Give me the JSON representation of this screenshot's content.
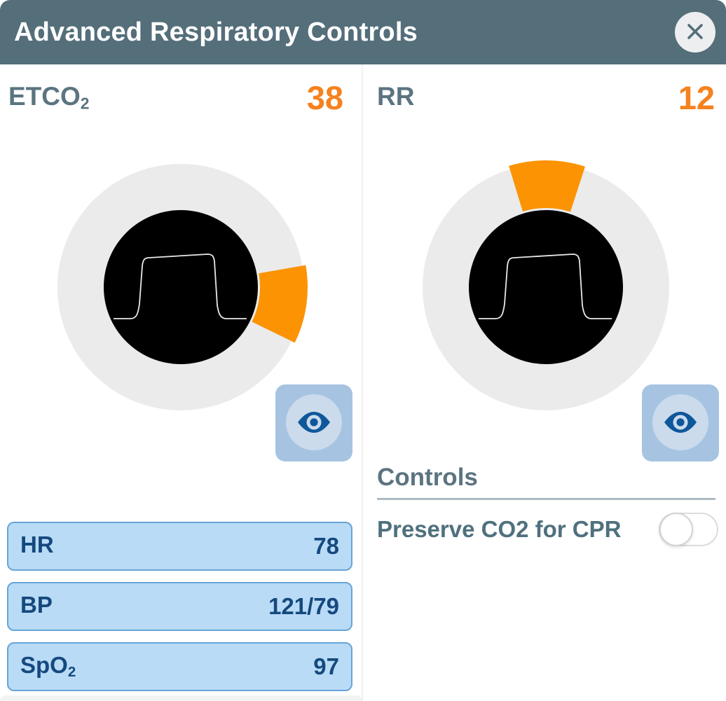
{
  "header": {
    "title": "Advanced Respiratory Controls",
    "close_icon": "x-close"
  },
  "theme": {
    "header_bg": "#546E7A",
    "slate_text": "#5B7480",
    "accent_orange": "#F5821F",
    "wedge_orange": "#FB9303",
    "gauge_ring": "#EBEBEB",
    "gauge_face": "#000000",
    "waveform": "#E9E9E9",
    "eye_button_bg": "#A6C4E2",
    "eye_button_circle": "#CBDBEC",
    "eye_icon": "#0F579B",
    "vital_bg": "#B9DBF6",
    "vital_border": "#67A4D8",
    "vital_text": "#15497E"
  },
  "etco2": {
    "label_base": "ETCO",
    "label_sub": "2",
    "value": "38",
    "gauge": {
      "wedge_start_deg": -10,
      "wedge_end_deg": 26
    }
  },
  "rr": {
    "label_base": "RR",
    "label_sub": "",
    "value": "12",
    "gauge": {
      "wedge_start_deg": -107,
      "wedge_end_deg": -72
    }
  },
  "vitals": {
    "rows": [
      {
        "label_base": "HR",
        "label_sub": "",
        "value": "78"
      },
      {
        "label_base": "BP",
        "label_sub": "",
        "value": "121/79"
      },
      {
        "label_base": "SpO",
        "label_sub": "2",
        "value": "97"
      }
    ]
  },
  "controls": {
    "heading": "Controls",
    "preserve_co2": {
      "label": "Preserve CO2 for CPR",
      "state": "off"
    }
  }
}
